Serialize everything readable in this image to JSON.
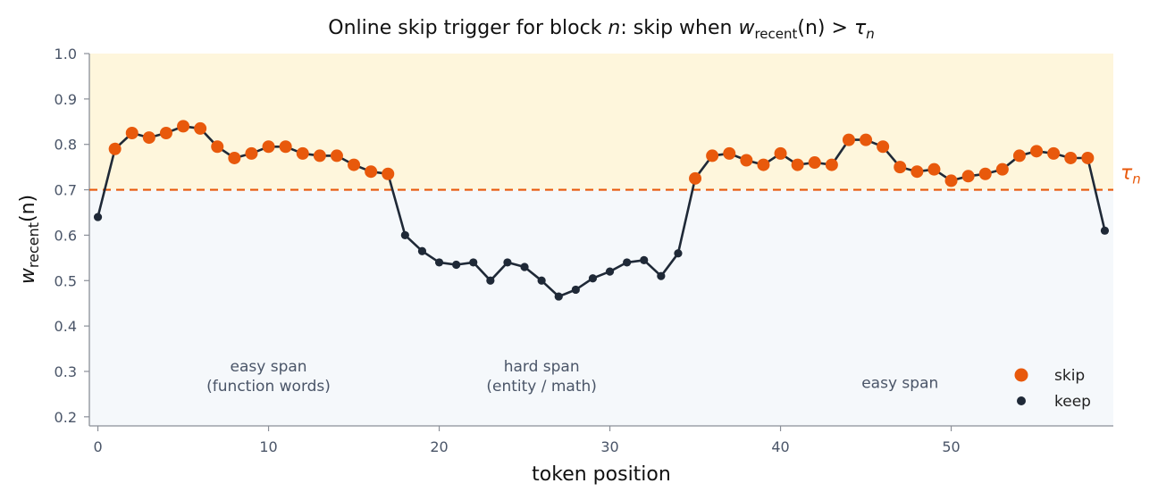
{
  "chart_data": {
    "type": "line",
    "title_parts": {
      "prefix": "Online skip trigger for block ",
      "n": "n",
      "middle": ": skip when ",
      "w": "w",
      "w_sub": "recent",
      "w_arg": "(n)",
      "gt": " > ",
      "tau": "τ",
      "tau_sub": "n"
    },
    "xlabel": "token position",
    "ylabel": {
      "w": "w",
      "sub": "recent",
      "arg": "(n)"
    },
    "xlim": [
      -0.5,
      59.5
    ],
    "ylim": [
      0.18,
      1.0
    ],
    "x_ticks": [
      0,
      10,
      20,
      30,
      40,
      50
    ],
    "y_ticks": [
      0.2,
      0.3,
      0.4,
      0.5,
      0.6,
      0.7,
      0.8,
      0.9,
      1.0
    ],
    "y_tick_labels": [
      "0.2",
      "0.3",
      "0.4",
      "0.5",
      "0.6",
      "0.7",
      "0.8",
      "0.9",
      "1.0"
    ],
    "threshold": {
      "value": 0.7,
      "label": "τ",
      "label_sub": "n",
      "color": "#e8590c"
    },
    "regions": {
      "above_color": "#fef6dc",
      "below_color": "#f5f8fb"
    },
    "x": [
      0,
      1,
      2,
      3,
      4,
      5,
      6,
      7,
      8,
      9,
      10,
      11,
      12,
      13,
      14,
      15,
      16,
      17,
      18,
      19,
      20,
      21,
      22,
      23,
      24,
      25,
      26,
      27,
      28,
      29,
      30,
      31,
      32,
      33,
      34,
      35,
      36,
      37,
      38,
      39,
      40,
      41,
      42,
      43,
      44,
      45,
      46,
      47,
      48,
      49,
      50,
      51,
      52,
      53,
      54,
      55,
      56,
      57,
      58,
      59
    ],
    "y": [
      0.64,
      0.79,
      0.825,
      0.815,
      0.825,
      0.84,
      0.835,
      0.795,
      0.77,
      0.78,
      0.795,
      0.795,
      0.78,
      0.775,
      0.775,
      0.755,
      0.74,
      0.735,
      0.6,
      0.565,
      0.54,
      0.535,
      0.54,
      0.5,
      0.54,
      0.53,
      0.5,
      0.465,
      0.48,
      0.505,
      0.52,
      0.54,
      0.545,
      0.51,
      0.56,
      0.725,
      0.775,
      0.78,
      0.765,
      0.755,
      0.78,
      0.755,
      0.76,
      0.755,
      0.81,
      0.81,
      0.795,
      0.75,
      0.74,
      0.745,
      0.72,
      0.73,
      0.735,
      0.745,
      0.775,
      0.785,
      0.78,
      0.77,
      0.77,
      0.61
    ],
    "series_colors": {
      "line": "#1f2937",
      "skip": "#e8590c",
      "keep": "#1f2937"
    },
    "legend": {
      "position": "bottom-right",
      "entries": [
        {
          "label": "skip",
          "kind": "skip"
        },
        {
          "label": "keep",
          "kind": "keep"
        }
      ]
    },
    "annotations": [
      {
        "lines": [
          "easy span",
          "(function words)"
        ],
        "x": 10,
        "y": 0.29
      },
      {
        "lines": [
          "hard span",
          "(entity / math)"
        ],
        "x": 26,
        "y": 0.29
      },
      {
        "lines": [
          "easy span"
        ],
        "x": 47,
        "y": 0.275
      }
    ],
    "grid": false
  }
}
